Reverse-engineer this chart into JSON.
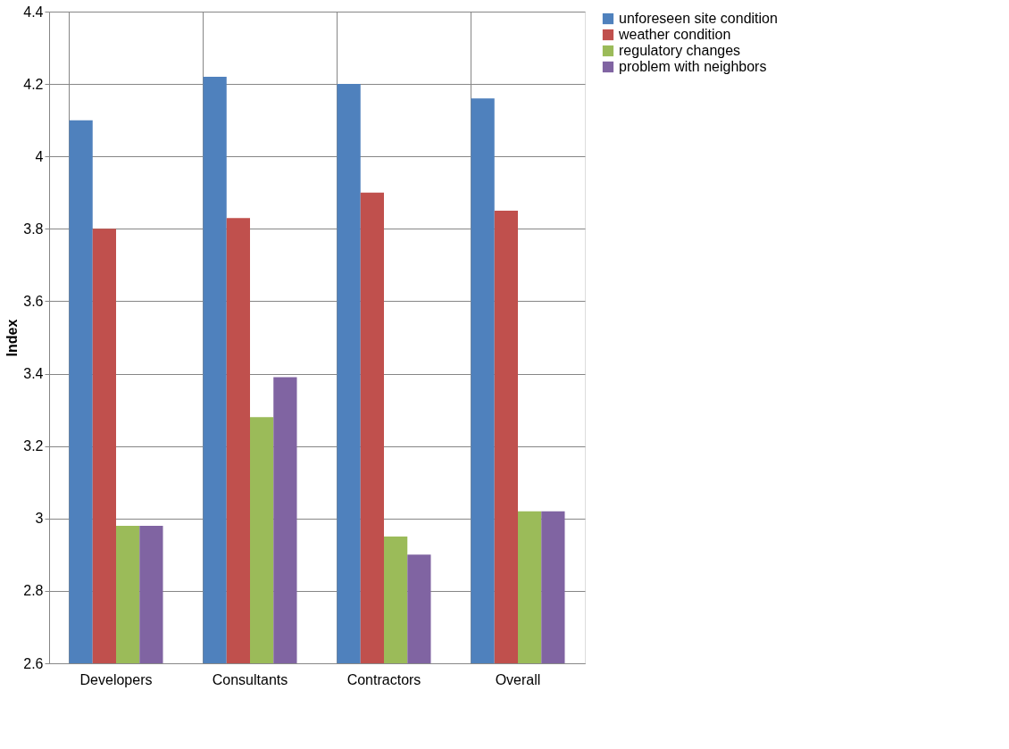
{
  "chart_data": {
    "type": "bar",
    "ylabel": "Index",
    "categories": [
      "Developers",
      "Consultants",
      "Contractors",
      "Overall"
    ],
    "series": [
      {
        "name": "unforeseen site condition",
        "color": "#4f81bd",
        "values": [
          4.1,
          4.22,
          4.2,
          4.16
        ]
      },
      {
        "name": "weather condition",
        "color": "#c0504d",
        "values": [
          3.8,
          3.83,
          3.9,
          3.85
        ]
      },
      {
        "name": "regulatory changes",
        "color": "#9bbb59",
        "values": [
          2.98,
          3.28,
          2.95,
          3.02
        ]
      },
      {
        "name": "problem with neighbors",
        "color": "#8064a2",
        "values": [
          2.98,
          3.39,
          2.9,
          3.02
        ]
      }
    ],
    "ylim": [
      2.6,
      4.4
    ],
    "yticks": [
      2.6,
      2.8,
      3,
      3.2,
      3.4,
      3.6,
      3.8,
      4,
      4.2,
      4.4
    ],
    "grid": true,
    "legend": "right"
  }
}
